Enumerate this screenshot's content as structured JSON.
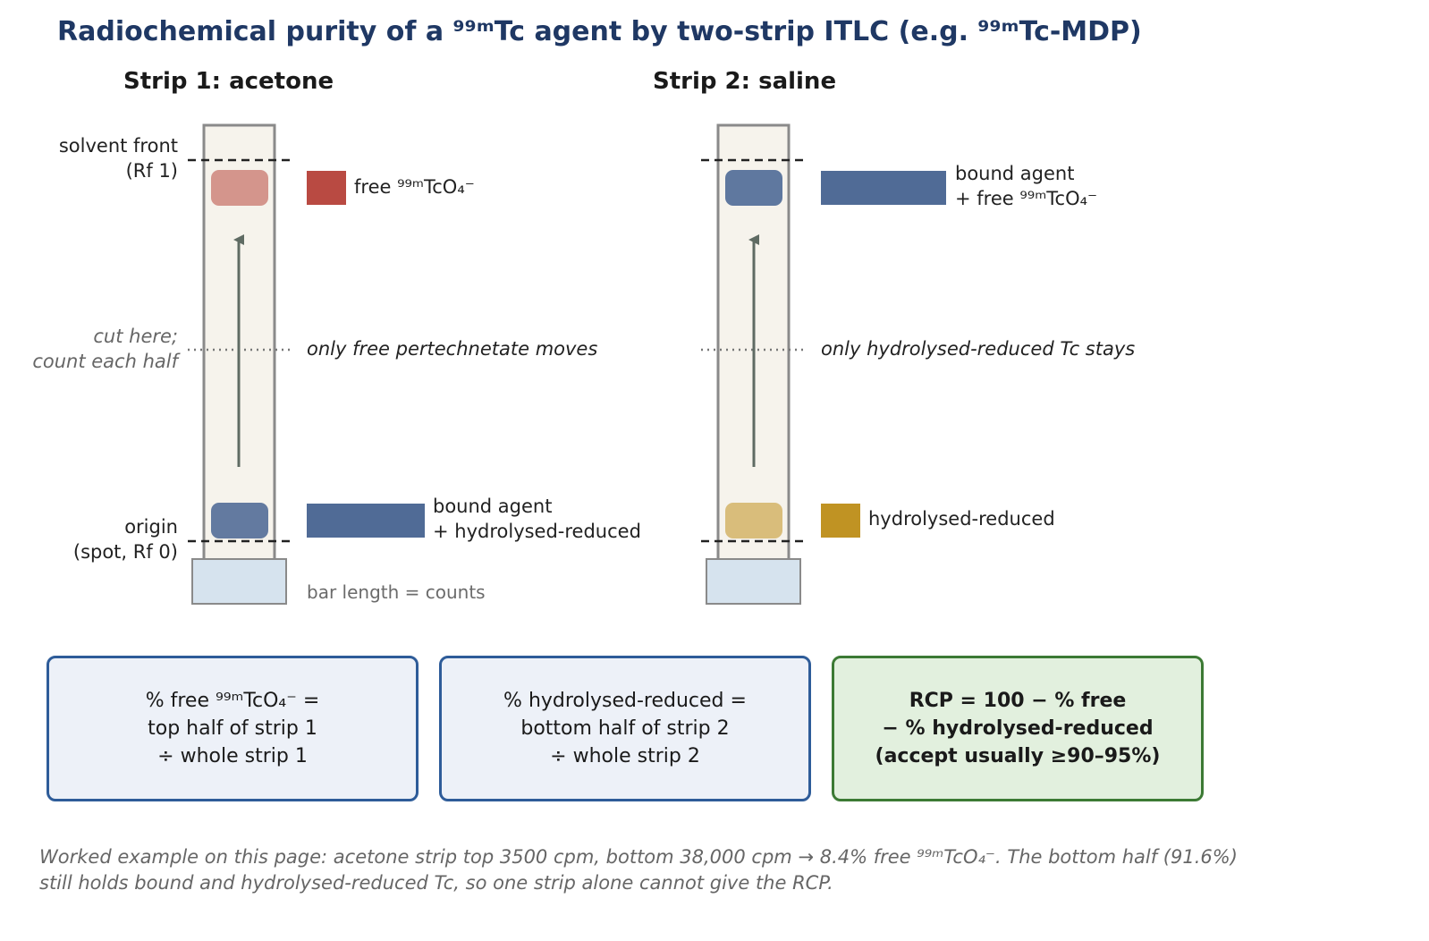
{
  "title": "Radiochemical purity of a ⁹⁹ᵐTc agent by two-strip ITLC (e.g. ⁹⁹ᵐTc-MDP)",
  "left_labels": {
    "solvent_front": [
      "solvent front",
      "(Rf 1)"
    ],
    "cut": [
      "cut here;",
      "count each half"
    ],
    "origin": [
      "origin",
      "(spot, Rf 0)"
    ]
  },
  "strip1": {
    "title": "Strip 1: acetone",
    "top_label": [
      "free ⁹⁹ᵐTcO₄⁻"
    ],
    "middle_note": "only free pertechnetate moves",
    "bottom_label": [
      "bound agent",
      "+ hydrolysed-reduced"
    ],
    "bar_note": "bar length = counts",
    "top_color": "#b94a42",
    "bottom_color": "#506b96",
    "top_fraction": 0.084,
    "bottom_fraction": 0.916
  },
  "strip2": {
    "title": "Strip 2: saline",
    "top_label": [
      "bound agent",
      "+ free ⁹⁹ᵐTcO₄⁻"
    ],
    "middle_note": "only hydrolysed-reduced Tc stays",
    "bottom_label": [
      "hydrolysed-reduced"
    ],
    "top_color": "#506b96",
    "bottom_color": "#c09323"
  },
  "formulas": [
    [
      "% free ⁹⁹ᵐTcO₄⁻ =",
      "top half of strip 1",
      "÷ whole strip 1"
    ],
    [
      "% hydrolysed-reduced =",
      "bottom half of strip 2",
      "÷ whole strip 2"
    ],
    [
      "RCP = 100 − % free",
      "− % hydrolysed-reduced",
      "(accept usually ≥90–95%)"
    ]
  ],
  "footnote": [
    "Worked example on this page: acetone strip top 3500 cpm, bottom 38,000 cpm → 8.4% free ⁹⁹ᵐTcO₄⁻. The bottom half (91.6%)",
    "still holds bound and hydrolysed-reduced Tc, so one strip alone cannot give the RCP."
  ]
}
